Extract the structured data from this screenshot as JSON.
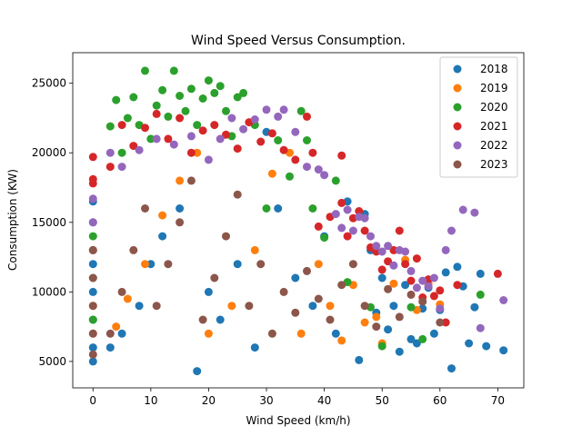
{
  "chart_data": {
    "type": "scatter",
    "title": "Wind Speed Versus Consumption.",
    "xlabel": "Wind Speed (km/h)",
    "ylabel": "Consumption (KW)",
    "xlim": [
      -3.5,
      74.5
    ],
    "ylim": [
      3100,
      27200
    ],
    "xticks": [
      0,
      10,
      20,
      30,
      40,
      50,
      60,
      70
    ],
    "yticks": [
      5000,
      10000,
      15000,
      20000,
      25000
    ],
    "grid": false,
    "legend_position": "top-right",
    "series": [
      {
        "name": "2018",
        "color": "#1f77b4",
        "points": [
          [
            0,
            5000
          ],
          [
            0,
            6000
          ],
          [
            0,
            8000
          ],
          [
            0,
            10000
          ],
          [
            0,
            12000
          ],
          [
            0,
            15000
          ],
          [
            0,
            16500
          ],
          [
            3,
            6000
          ],
          [
            5,
            7000
          ],
          [
            8,
            9000
          ],
          [
            10,
            12000
          ],
          [
            12,
            14000
          ],
          [
            15,
            16000
          ],
          [
            18,
            4300
          ],
          [
            20,
            10000
          ],
          [
            22,
            8000
          ],
          [
            25,
            12000
          ],
          [
            28,
            6000
          ],
          [
            30,
            21500
          ],
          [
            32,
            16000
          ],
          [
            35,
            11000
          ],
          [
            38,
            9000
          ],
          [
            40,
            14000
          ],
          [
            42,
            7000
          ],
          [
            44,
            16500
          ],
          [
            46,
            5100
          ],
          [
            47,
            15600
          ],
          [
            48,
            13000
          ],
          [
            49,
            8500
          ],
          [
            50,
            11000
          ],
          [
            51,
            7300
          ],
          [
            52,
            9000
          ],
          [
            53,
            5700
          ],
          [
            54,
            10500
          ],
          [
            55,
            6600
          ],
          [
            56,
            6300
          ],
          [
            57,
            8800
          ],
          [
            58,
            10300
          ],
          [
            59,
            7000
          ],
          [
            60,
            8700
          ],
          [
            61,
            11400
          ],
          [
            62,
            4500
          ],
          [
            63,
            11800
          ],
          [
            64,
            10400
          ],
          [
            65,
            6300
          ],
          [
            66,
            8900
          ],
          [
            67,
            11300
          ],
          [
            68,
            6100
          ],
          [
            71,
            5800
          ]
        ]
      },
      {
        "name": "2019",
        "color": "#ff7f0e",
        "points": [
          [
            0,
            7000
          ],
          [
            0,
            9000
          ],
          [
            0,
            13000
          ],
          [
            4,
            7500
          ],
          [
            6,
            9500
          ],
          [
            9,
            12000
          ],
          [
            12,
            15500
          ],
          [
            15,
            18000
          ],
          [
            18,
            20000
          ],
          [
            20,
            7000
          ],
          [
            24,
            9000
          ],
          [
            28,
            13000
          ],
          [
            31,
            18500
          ],
          [
            34,
            20000
          ],
          [
            36,
            7000
          ],
          [
            39,
            12000
          ],
          [
            41,
            9000
          ],
          [
            43,
            6500
          ],
          [
            45,
            10500
          ],
          [
            47,
            7800
          ],
          [
            49,
            8200
          ],
          [
            50,
            6300
          ],
          [
            52,
            10600
          ],
          [
            54,
            12300
          ],
          [
            56,
            8700
          ],
          [
            58,
            10600
          ],
          [
            60,
            9100
          ]
        ]
      },
      {
        "name": "2020",
        "color": "#2ca02c",
        "points": [
          [
            0,
            8000
          ],
          [
            0,
            11000
          ],
          [
            0,
            14000
          ],
          [
            3,
            21900
          ],
          [
            4,
            23800
          ],
          [
            5,
            20000
          ],
          [
            6,
            22500
          ],
          [
            7,
            24000
          ],
          [
            8,
            22000
          ],
          [
            9,
            25900
          ],
          [
            10,
            21000
          ],
          [
            11,
            23400
          ],
          [
            12,
            24500
          ],
          [
            13,
            22600
          ],
          [
            14,
            25900
          ],
          [
            15,
            24100
          ],
          [
            16,
            23000
          ],
          [
            17,
            24600
          ],
          [
            18,
            22000
          ],
          [
            19,
            23900
          ],
          [
            20,
            25200
          ],
          [
            21,
            24300
          ],
          [
            22,
            24800
          ],
          [
            23,
            23000
          ],
          [
            24,
            21200
          ],
          [
            25,
            24000
          ],
          [
            26,
            24300
          ],
          [
            28,
            22000
          ],
          [
            30,
            16000
          ],
          [
            32,
            20900
          ],
          [
            34,
            18300
          ],
          [
            36,
            23000
          ],
          [
            37,
            20900
          ],
          [
            38,
            16000
          ],
          [
            40,
            13900
          ],
          [
            42,
            18000
          ],
          [
            44,
            10700
          ],
          [
            48,
            8900
          ],
          [
            50,
            6100
          ],
          [
            55,
            8900
          ],
          [
            57,
            6600
          ],
          [
            67,
            9800
          ]
        ]
      },
      {
        "name": "2021",
        "color": "#d62728",
        "points": [
          [
            0,
            17800
          ],
          [
            0,
            19700
          ],
          [
            0,
            18100
          ],
          [
            3,
            19000
          ],
          [
            5,
            22000
          ],
          [
            7,
            20500
          ],
          [
            9,
            21800
          ],
          [
            11,
            22800
          ],
          [
            13,
            21000
          ],
          [
            15,
            22500
          ],
          [
            17,
            20000
          ],
          [
            19,
            21600
          ],
          [
            21,
            22000
          ],
          [
            23,
            21300
          ],
          [
            25,
            20300
          ],
          [
            27,
            22200
          ],
          [
            29,
            20800
          ],
          [
            31,
            21400
          ],
          [
            33,
            20200
          ],
          [
            35,
            19500
          ],
          [
            37,
            22600
          ],
          [
            38,
            20000
          ],
          [
            39,
            14700
          ],
          [
            41,
            15400
          ],
          [
            43,
            16400
          ],
          [
            43,
            19800
          ],
          [
            44,
            14000
          ],
          [
            45,
            15300
          ],
          [
            46,
            15800
          ],
          [
            47,
            14400
          ],
          [
            48,
            13200
          ],
          [
            49,
            12900
          ],
          [
            50,
            11600
          ],
          [
            51,
            12200
          ],
          [
            52,
            13000
          ],
          [
            53,
            14400
          ],
          [
            54,
            12000
          ],
          [
            55,
            10800
          ],
          [
            56,
            12400
          ],
          [
            57,
            9600
          ],
          [
            58,
            10900
          ],
          [
            59,
            9700
          ],
          [
            60,
            10100
          ],
          [
            61,
            7800
          ],
          [
            63,
            10500
          ],
          [
            70,
            11300
          ]
        ]
      },
      {
        "name": "2022",
        "color": "#9467bd",
        "points": [
          [
            0,
            15000
          ],
          [
            0,
            16700
          ],
          [
            0,
            13000
          ],
          [
            3,
            20000
          ],
          [
            5,
            19000
          ],
          [
            8,
            20200
          ],
          [
            11,
            21000
          ],
          [
            14,
            20600
          ],
          [
            17,
            21200
          ],
          [
            20,
            19500
          ],
          [
            22,
            21000
          ],
          [
            24,
            22500
          ],
          [
            26,
            21700
          ],
          [
            28,
            22400
          ],
          [
            30,
            23100
          ],
          [
            32,
            22600
          ],
          [
            33,
            23100
          ],
          [
            35,
            21500
          ],
          [
            37,
            19000
          ],
          [
            39,
            18800
          ],
          [
            40,
            18400
          ],
          [
            42,
            15600
          ],
          [
            43,
            14600
          ],
          [
            44,
            15900
          ],
          [
            45,
            14400
          ],
          [
            46,
            15400
          ],
          [
            47,
            15300
          ],
          [
            48,
            14000
          ],
          [
            49,
            13300
          ],
          [
            50,
            12900
          ],
          [
            51,
            13300
          ],
          [
            52,
            11900
          ],
          [
            53,
            13000
          ],
          [
            54,
            12900
          ],
          [
            55,
            11500
          ],
          [
            56,
            10300
          ],
          [
            57,
            10800
          ],
          [
            58,
            10400
          ],
          [
            59,
            11000
          ],
          [
            60,
            8800
          ],
          [
            61,
            13000
          ],
          [
            62,
            14400
          ],
          [
            64,
            15900
          ],
          [
            66,
            15700
          ],
          [
            67,
            7400
          ],
          [
            71,
            9400
          ]
        ]
      },
      {
        "name": "2023",
        "color": "#8c564b",
        "points": [
          [
            0,
            5500
          ],
          [
            0,
            7000
          ],
          [
            0,
            9000
          ],
          [
            0,
            11000
          ],
          [
            0,
            13000
          ],
          [
            3,
            7000
          ],
          [
            5,
            10000
          ],
          [
            7,
            13000
          ],
          [
            9,
            16000
          ],
          [
            11,
            9000
          ],
          [
            13,
            12000
          ],
          [
            15,
            15000
          ],
          [
            17,
            18000
          ],
          [
            19,
            8000
          ],
          [
            21,
            11000
          ],
          [
            23,
            14000
          ],
          [
            25,
            17000
          ],
          [
            27,
            9000
          ],
          [
            29,
            12000
          ],
          [
            31,
            7000
          ],
          [
            33,
            10000
          ],
          [
            35,
            8500
          ],
          [
            37,
            11500
          ],
          [
            39,
            9500
          ],
          [
            41,
            8000
          ],
          [
            43,
            10500
          ],
          [
            45,
            12000
          ],
          [
            47,
            9000
          ],
          [
            49,
            7500
          ],
          [
            51,
            10200
          ],
          [
            53,
            8200
          ],
          [
            55,
            9800
          ],
          [
            57,
            9300
          ],
          [
            60,
            7800
          ]
        ]
      }
    ]
  }
}
